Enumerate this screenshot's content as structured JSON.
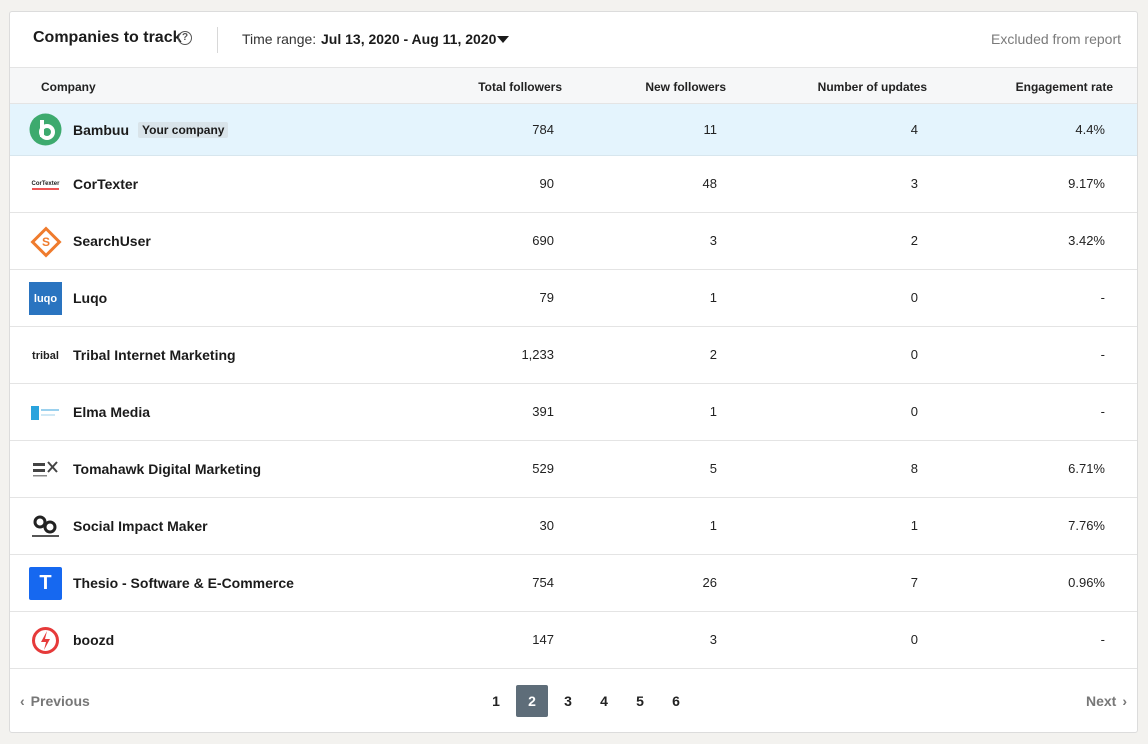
{
  "header": {
    "title": "Companies to track",
    "help_glyph": "?",
    "time_range_label": "Time range:",
    "time_range_value": "Jul 13, 2020 - Aug 11, 2020",
    "excluded_link": "Excluded from report"
  },
  "columns": {
    "company": "Company",
    "total_followers": "Total followers",
    "new_followers": "New followers",
    "updates": "Number of updates",
    "engagement": "Engagement rate"
  },
  "rows": [
    {
      "name": "Bambuu",
      "badge": "Your company",
      "total": "784",
      "new": "11",
      "updates": "4",
      "engagement": "4.4%",
      "logo": "bambuu-logo"
    },
    {
      "name": "CorTexter",
      "total": "90",
      "new": "48",
      "updates": "3",
      "engagement": "9.17%",
      "logo": "cortexter-logo",
      "logo_text": "CorTexter"
    },
    {
      "name": "SearchUser",
      "total": "690",
      "new": "3",
      "updates": "2",
      "engagement": "3.42%",
      "logo": "searchuser-logo",
      "logo_text": "S"
    },
    {
      "name": "Luqo",
      "total": "79",
      "new": "1",
      "updates": "0",
      "engagement": "-",
      "logo": "luqo-logo",
      "logo_text": "luqo"
    },
    {
      "name": "Tribal Internet Marketing",
      "total": "1,233",
      "new": "2",
      "updates": "0",
      "engagement": "-",
      "logo": "tribal-logo",
      "logo_text": "tribal"
    },
    {
      "name": "Elma Media",
      "total": "391",
      "new": "1",
      "updates": "0",
      "engagement": "-",
      "logo": "elma-logo"
    },
    {
      "name": "Tomahawk Digital Marketing",
      "total": "529",
      "new": "5",
      "updates": "8",
      "engagement": "6.71%",
      "logo": "tomahawk-logo"
    },
    {
      "name": "Social Impact Maker",
      "total": "30",
      "new": "1",
      "updates": "1",
      "engagement": "7.76%",
      "logo": "social-impact-logo"
    },
    {
      "name": "Thesio - Software & E-Commerce",
      "total": "754",
      "new": "26",
      "updates": "7",
      "engagement": "0.96%",
      "logo": "thesio-logo",
      "logo_text": "T"
    },
    {
      "name": "boozd",
      "total": "147",
      "new": "3",
      "updates": "0",
      "engagement": "-",
      "logo": "boozd-logo"
    }
  ],
  "pagination": {
    "previous": "Previous",
    "next": "Next",
    "pages": [
      "1",
      "2",
      "3",
      "4",
      "5",
      "6"
    ],
    "current": "2"
  },
  "colors": {
    "selected_row": "#e4f4fd",
    "active_page": "#5e6d79",
    "bambuu_green": "#3daa6e",
    "luqo_blue": "#2a74c0",
    "thesio_blue": "#1668f0",
    "searchuser_orange": "#ef7b2d",
    "boozd_red": "#e63a3a"
  }
}
